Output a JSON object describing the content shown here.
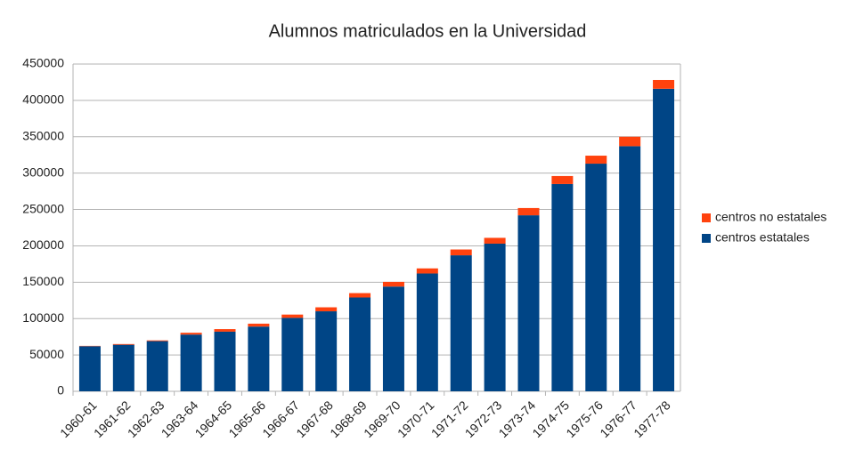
{
  "chart_data": {
    "type": "stacked-bar",
    "title": "Alumnos matriculados en la Universidad",
    "categories": [
      "1960-61",
      "1961-62",
      "1962-63",
      "1963-64",
      "1964-65",
      "1965-66",
      "1966-67",
      "1967-68",
      "1968-69",
      "1969-70",
      "1970-71",
      "1971-72",
      "1972-73",
      "1973-74",
      "1974-75",
      "1975-76",
      "1976-77",
      "1977-78"
    ],
    "series": [
      {
        "name": "centros estatales",
        "color": "#004586",
        "values": [
          62000,
          64000,
          69000,
          78000,
          82000,
          89000,
          101000,
          110000,
          129000,
          144000,
          162000,
          187000,
          203000,
          242000,
          285000,
          313000,
          337000,
          416000
        ]
      },
      {
        "name": "centros no estatales",
        "color": "#ff420e",
        "values": [
          500,
          1000,
          1000,
          2500,
          3500,
          4000,
          4500,
          5500,
          6000,
          6500,
          7000,
          8000,
          8000,
          10000,
          11000,
          11000,
          13000,
          12000
        ]
      }
    ],
    "ylim": [
      0,
      450000
    ],
    "yticks": [
      0,
      50000,
      100000,
      150000,
      200000,
      250000,
      300000,
      350000,
      400000,
      450000
    ],
    "grid": true,
    "legend": "right"
  }
}
